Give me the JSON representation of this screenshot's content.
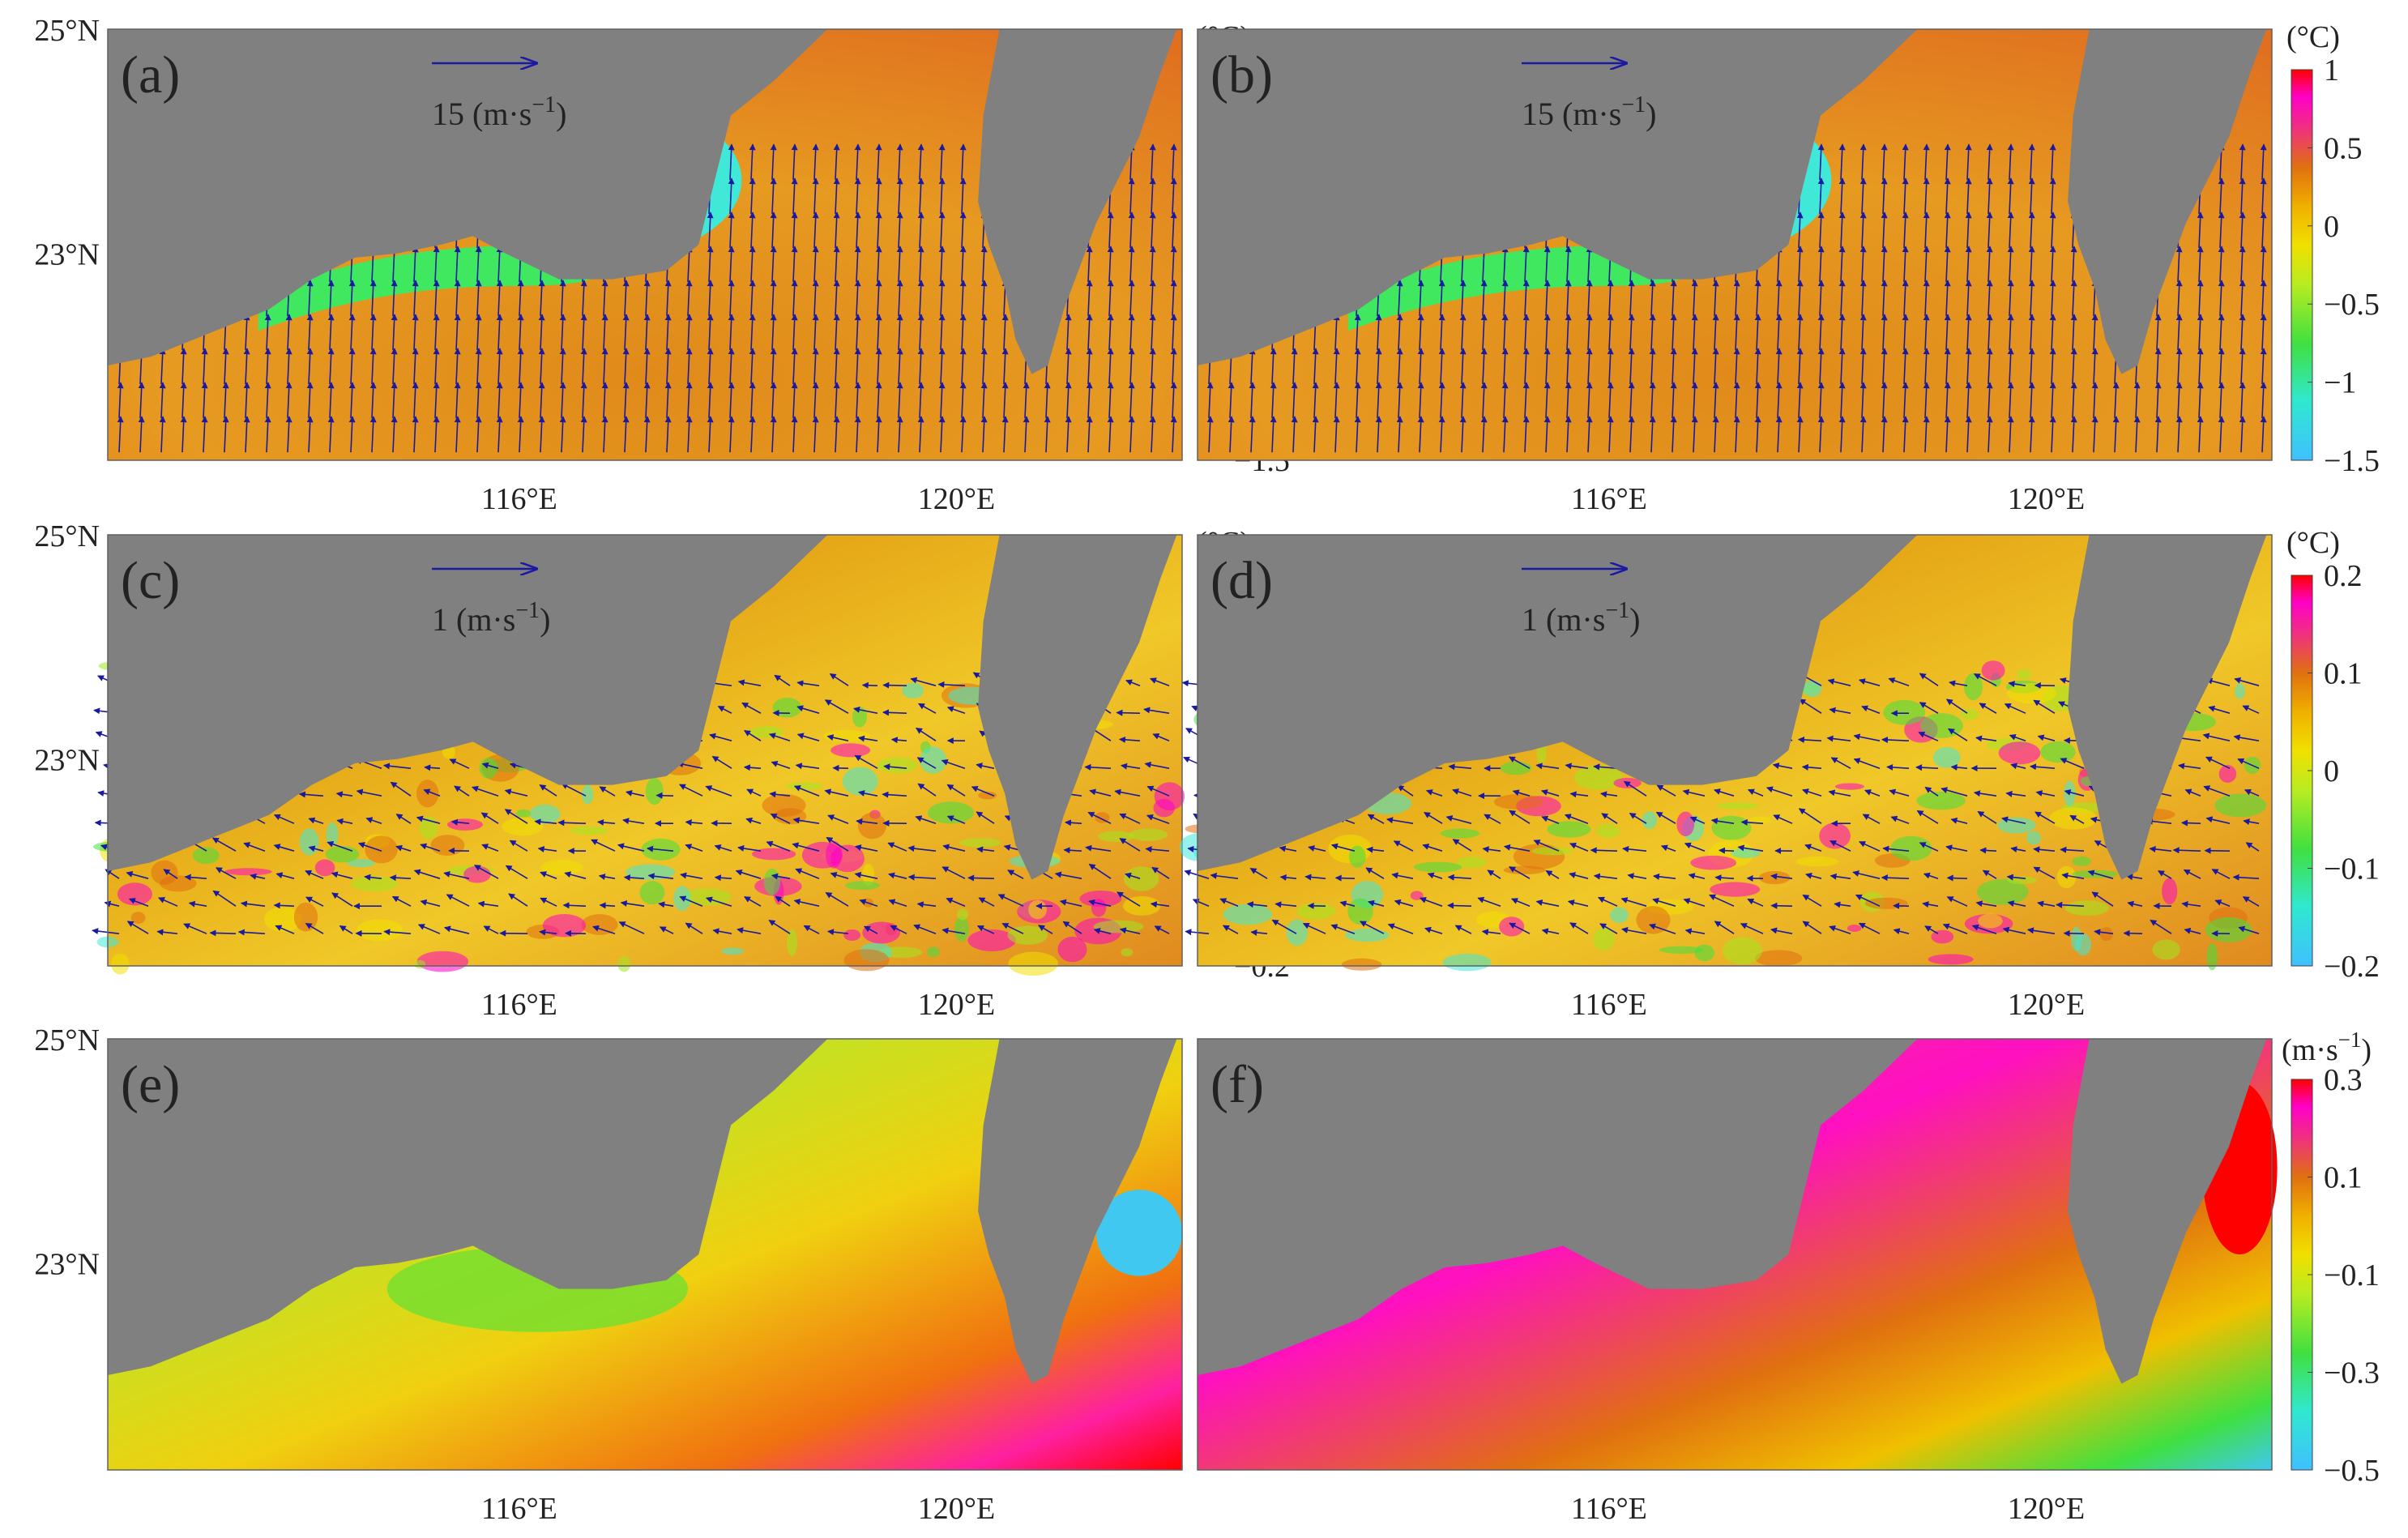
{
  "chart_data": [
    {
      "panel": "(a)",
      "type": "heatmap",
      "title": "",
      "quiver_key": {
        "value": 15,
        "label": "15 (m·s⁻¹)"
      },
      "xticks": [
        "116°E",
        "120°E"
      ],
      "yticks": [
        "25°N",
        "23°N"
      ],
      "colorbar": {
        "unit": "(°C)",
        "range": [
          -1.5,
          1
        ],
        "ticks": [
          "1",
          "0.5",
          "0",
          "−0.5",
          "−1",
          "−1.5"
        ]
      }
    },
    {
      "panel": "(b)",
      "type": "heatmap",
      "title": "",
      "quiver_key": {
        "value": 15,
        "label": "15 (m·s⁻¹)"
      },
      "xticks": [
        "116°E",
        "120°E"
      ],
      "yticks": [],
      "colorbar": {
        "unit": "(°C)",
        "range": [
          -1.5,
          1
        ],
        "ticks": [
          "1",
          "0.5",
          "0",
          "−0.5",
          "−1",
          "−1.5"
        ]
      }
    },
    {
      "panel": "(c)",
      "type": "heatmap",
      "title": "",
      "quiver_key": {
        "value": 1,
        "label": "1 (m·s⁻¹)"
      },
      "xticks": [
        "116°E",
        "120°E"
      ],
      "yticks": [
        "25°N",
        "23°N"
      ],
      "colorbar": {
        "unit": "(°C)",
        "range": [
          -0.2,
          0.2
        ],
        "ticks": [
          "0.2",
          "0.1",
          "0",
          "−0.1",
          "−0.2"
        ]
      }
    },
    {
      "panel": "(d)",
      "type": "heatmap",
      "title": "",
      "quiver_key": {
        "value": 1,
        "label": "1 (m·s⁻¹)"
      },
      "xticks": [
        "116°E",
        "120°E"
      ],
      "yticks": [],
      "colorbar": {
        "unit": "(°C)",
        "range": [
          -0.2,
          0.2
        ],
        "ticks": [
          "0.2",
          "0.1",
          "0",
          "−0.1",
          "−0.2"
        ]
      }
    },
    {
      "panel": "(e)",
      "type": "heatmap",
      "title": "",
      "xticks": [
        "116°E",
        "120°E"
      ],
      "yticks": [
        "25°N",
        "23°N"
      ],
      "colorbar": null
    },
    {
      "panel": "(f)",
      "type": "heatmap",
      "title": "",
      "xticks": [
        "116°E",
        "120°E"
      ],
      "yticks": [],
      "colorbar": {
        "unit": "(m·s⁻¹)",
        "range": [
          -0.5,
          0.3
        ],
        "ticks": [
          "0.3",
          "0.1",
          "−0.1",
          "−0.3",
          "−0.5"
        ]
      }
    }
  ],
  "colors": {
    "land": "#808080",
    "arrow": "#1a1aa0",
    "colormap": [
      "#3fc0ff",
      "#30e8d0",
      "#40e040",
      "#a8ec20",
      "#f0f000",
      "#f0c000",
      "#e89010",
      "#e06010",
      "#f03080",
      "#ff00c8",
      "#ff0000"
    ]
  }
}
